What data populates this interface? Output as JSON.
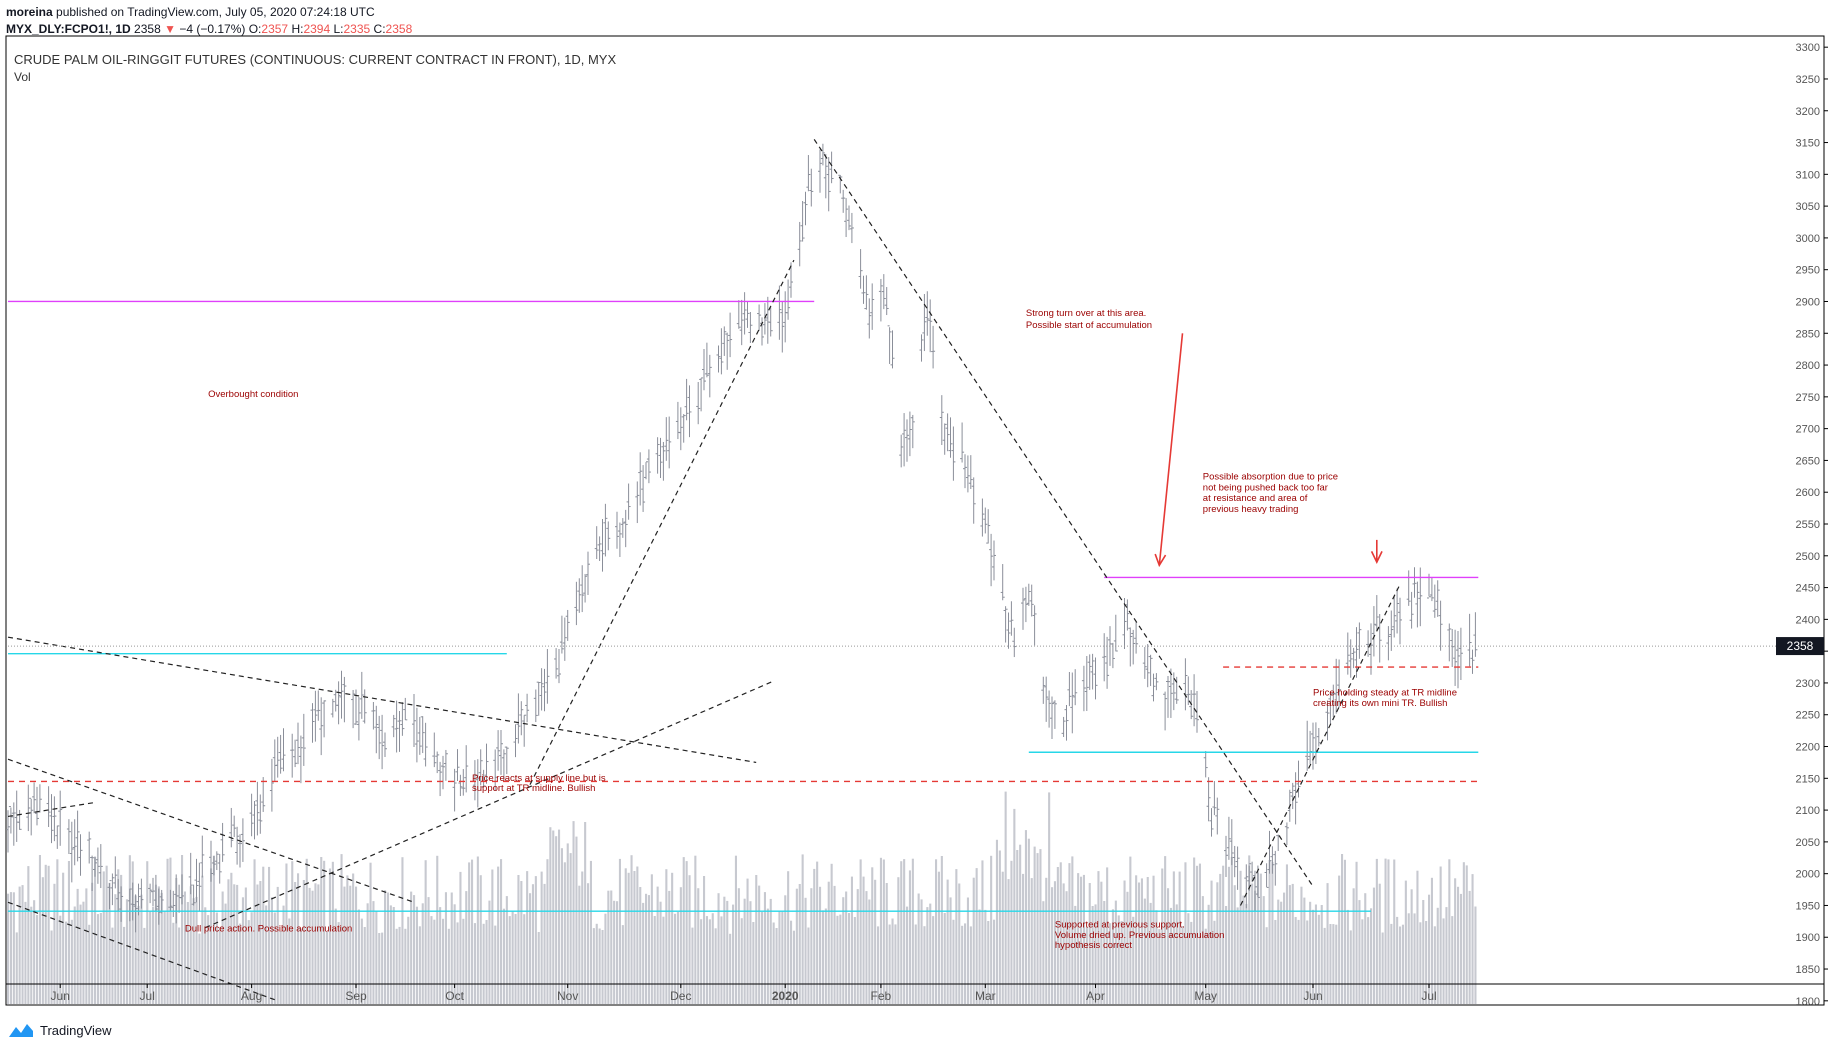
{
  "header": {
    "author": "moreina",
    "published": "published on TradingView.com, July 05, 2020 07:24:18 UTC"
  },
  "ohlc": {
    "symbol": "MYX_DLY:FCPO1!, 1D",
    "last": "2358",
    "change": "−4 (−0.17%)",
    "o_label": "O:",
    "o": "2357",
    "h_label": "H:",
    "h": "2394",
    "l_label": "L:",
    "l": "2335",
    "c_label": "C:",
    "c": "2358"
  },
  "colors": {
    "bar": "#8a8e99",
    "volume": "#c7c9d0",
    "magenta": "#e040fb",
    "cyan": "#26d7e8",
    "red": "#e53935",
    "dark_red": "#9b0000",
    "axis_text": "#555555"
  },
  "chart_data": {
    "type": "ohlc",
    "title": "CRUDE PALM OIL-RINGGIT FUTURES (CONTINUOUS: CURRENT CONTRACT IN FRONT), 1D, MYX",
    "subtitle": "Vol",
    "x_labels": [
      "Jun",
      "Jul",
      "Aug",
      "Sep",
      "Oct",
      "Nov",
      "Dec",
      "2020",
      "Feb",
      "Mar",
      "Apr",
      "May",
      "Jun",
      "Jul"
    ],
    "x_label_days": [
      18,
      48,
      84,
      120,
      154,
      193,
      232,
      268,
      301,
      337,
      375,
      413,
      450,
      490
    ],
    "y_ticks": [
      1800,
      1850,
      1900,
      1950,
      2000,
      2050,
      2100,
      2150,
      2200,
      2250,
      2300,
      2350,
      2400,
      2450,
      2500,
      2550,
      2600,
      2650,
      2700,
      2750,
      2800,
      2850,
      2900,
      2950,
      3000,
      3050,
      3100,
      3150,
      3200,
      3250,
      3300
    ],
    "ylim": [
      1795,
      3305
    ],
    "last_price": 2358,
    "anchors": [
      [
        0,
        2080
      ],
      [
        10,
        2110
      ],
      [
        20,
        2060
      ],
      [
        30,
        2020
      ],
      [
        40,
        1960
      ],
      [
        48,
        1950
      ],
      [
        56,
        1960
      ],
      [
        63,
        1975
      ],
      [
        70,
        2010
      ],
      [
        78,
        2050
      ],
      [
        84,
        2080
      ],
      [
        92,
        2160
      ],
      [
        100,
        2200
      ],
      [
        108,
        2250
      ],
      [
        115,
        2270
      ],
      [
        122,
        2250
      ],
      [
        130,
        2220
      ],
      [
        138,
        2260
      ],
      [
        146,
        2190
      ],
      [
        154,
        2150
      ],
      [
        164,
        2160
      ],
      [
        172,
        2200
      ],
      [
        180,
        2260
      ],
      [
        188,
        2310
      ],
      [
        196,
        2420
      ],
      [
        204,
        2520
      ],
      [
        212,
        2560
      ],
      [
        220,
        2620
      ],
      [
        228,
        2680
      ],
      [
        236,
        2740
      ],
      [
        244,
        2800
      ],
      [
        250,
        2870
      ],
      [
        256,
        2880
      ],
      [
        262,
        2860
      ],
      [
        268,
        2880
      ],
      [
        272,
        2960
      ],
      [
        276,
        3080
      ],
      [
        282,
        3110
      ],
      [
        287,
        3080
      ],
      [
        292,
        2990
      ],
      [
        297,
        2880
      ],
      [
        303,
        2900
      ],
      [
        308,
        2650
      ],
      [
        312,
        2720
      ],
      [
        317,
        2880
      ],
      [
        322,
        2720
      ],
      [
        327,
        2660
      ],
      [
        332,
        2620
      ],
      [
        337,
        2560
      ],
      [
        342,
        2440
      ],
      [
        347,
        2370
      ],
      [
        352,
        2440
      ],
      [
        357,
        2300
      ],
      [
        362,
        2240
      ],
      [
        368,
        2270
      ],
      [
        374,
        2310
      ],
      [
        380,
        2350
      ],
      [
        386,
        2400
      ],
      [
        392,
        2330
      ],
      [
        398,
        2270
      ],
      [
        404,
        2300
      ],
      [
        410,
        2250
      ],
      [
        415,
        2090
      ],
      [
        420,
        2060
      ],
      [
        425,
        2000
      ],
      [
        430,
        1980
      ],
      [
        435,
        2000
      ],
      [
        440,
        2060
      ],
      [
        445,
        2150
      ],
      [
        450,
        2200
      ],
      [
        455,
        2260
      ],
      [
        460,
        2320
      ],
      [
        466,
        2370
      ],
      [
        472,
        2380
      ],
      [
        478,
        2390
      ],
      [
        484,
        2420
      ],
      [
        489,
        2470
      ],
      [
        494,
        2410
      ],
      [
        498,
        2360
      ],
      [
        502,
        2330
      ],
      [
        506,
        2358
      ]
    ],
    "annotations": [
      {
        "text": "Overbought condition",
        "day": 69,
        "price": 2750
      },
      {
        "text": "Strong turn over at this area.",
        "day": 351,
        "price": 2877
      },
      {
        "text": "Possible start of accumulation",
        "day": 351,
        "price": 2858
      },
      {
        "text": "Possible absorption due to price",
        "day": 412,
        "price": 2620
      },
      {
        "text": "not being pushed back too far",
        "day": 412,
        "price": 2603
      },
      {
        "text": "at resistance and area of",
        "day": 412,
        "price": 2586
      },
      {
        "text": "previous heavy trading",
        "day": 412,
        "price": 2569
      },
      {
        "text": "Price reacts at supply line but is",
        "day": 160,
        "price": 2146
      },
      {
        "text": "support at TR midline. Bullish",
        "day": 160,
        "price": 2130
      },
      {
        "text": "Dull price action.  Possible accumulation",
        "day": 61,
        "price": 1909
      },
      {
        "text": "Supported at previous support.",
        "day": 361,
        "price": 1915
      },
      {
        "text": "Volume dried up.  Previous accumulation",
        "day": 361,
        "price": 1899
      },
      {
        "text": "hypothesis correct",
        "day": 361,
        "price": 1883
      },
      {
        "text": "Price holding steady at TR midline",
        "day": 450,
        "price": 2280
      },
      {
        "text": "creating its own mini TR. Bullish",
        "day": 450,
        "price": 2264
      }
    ],
    "horizontal_lines": [
      {
        "price": 2900,
        "d1": 0,
        "d2": 278,
        "color": "magenta",
        "dash": "none"
      },
      {
        "price": 2466,
        "d1": 378,
        "d2": 507,
        "color": "magenta",
        "dash": "none"
      },
      {
        "price": 2346,
        "d1": 0,
        "d2": 172,
        "color": "cyan",
        "dash": "none"
      },
      {
        "price": 2191,
        "d1": 352,
        "d2": 507,
        "color": "cyan",
        "dash": "none"
      },
      {
        "price": 1941,
        "d1": 0,
        "d2": 470,
        "color": "cyan",
        "dash": "none"
      },
      {
        "price": 2145,
        "d1": 0,
        "d2": 507,
        "color": "red",
        "dash": "6,5"
      },
      {
        "price": 2325,
        "d1": 419,
        "d2": 507,
        "color": "red",
        "dash": "6,5"
      }
    ],
    "trend_lines": [
      {
        "d1": 0,
        "p1": 2372,
        "d2": 258,
        "p2": 2175
      },
      {
        "d1": 0,
        "p1": 2180,
        "d2": 140,
        "p2": 1955
      },
      {
        "d1": 0,
        "p1": 1955,
        "d2": 93,
        "p2": 1800
      },
      {
        "d1": 0,
        "p1": 2090,
        "d2": 30,
        "p2": 2112
      },
      {
        "d1": 68,
        "p1": 1915,
        "d2": 264,
        "p2": 2303
      },
      {
        "d1": 180,
        "p1": 2140,
        "d2": 271,
        "p2": 2965
      },
      {
        "d1": 278,
        "p1": 3155,
        "d2": 450,
        "p2": 1980
      },
      {
        "d1": 425,
        "p1": 1950,
        "d2": 480,
        "p2": 2455
      }
    ],
    "arrows": [
      {
        "x1d": 405,
        "p1": 2850,
        "x2d": 397,
        "p2": 2485
      },
      {
        "x1d": 472,
        "p1": 2525,
        "x2d": 472,
        "p2": 2490
      }
    ]
  },
  "footer": {
    "brand": "TradingView",
    "logo_icon": "tradingview-logo-icon"
  }
}
